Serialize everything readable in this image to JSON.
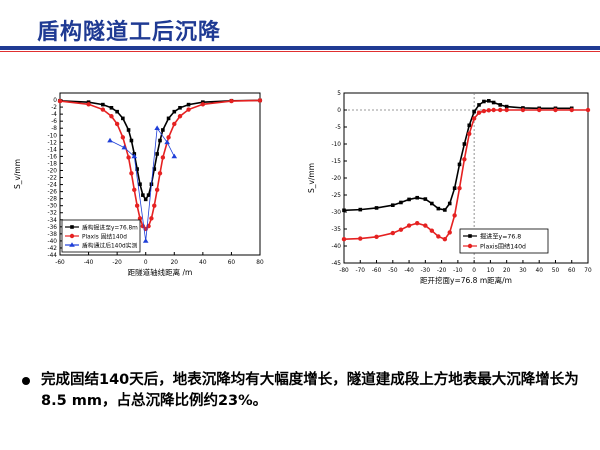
{
  "slide": {
    "title": "盾构隧道工后沉降",
    "bullet": "完成固结140天后，地表沉降均有大幅度增长，隧道建成段上方地表最大沉降增长为8.5 mm，占总沉降比例约23%。"
  },
  "chart_data": [
    {
      "type": "line",
      "xlabel": "距隧道轴线距离 /m",
      "ylabel": "S_v/mm",
      "xlim": [
        -60,
        80
      ],
      "ylim": [
        -44,
        2
      ],
      "xticks": [
        -60,
        -40,
        -20,
        0,
        20,
        40,
        60,
        80
      ],
      "yticks": [
        0,
        -2,
        -4,
        -6,
        -8,
        -10,
        -12,
        -14,
        -16,
        -18,
        -20,
        -22,
        -24,
        -26,
        -28,
        -30,
        -32,
        -34,
        -36,
        -38,
        -40,
        -42,
        -44
      ],
      "legend_position": "bottom-left",
      "series": [
        {
          "name": "盾构掘进至y=76.8m",
          "color": "#000000",
          "marker": "square",
          "x": [
            -60,
            -40,
            -30,
            -24,
            -20,
            -16,
            -12,
            -10,
            -8,
            -6,
            -4,
            -2,
            0,
            2,
            4,
            6,
            8,
            10,
            12,
            16,
            20,
            24,
            30,
            40,
            60,
            80
          ],
          "y": [
            -0.2,
            -0.6,
            -1.3,
            -2.2,
            -3.3,
            -5.2,
            -8.5,
            -11.5,
            -15.3,
            -19.6,
            -23.9,
            -27,
            -28.2,
            -27,
            -23.9,
            -19.6,
            -15.3,
            -11.5,
            -8.5,
            -5.2,
            -3.3,
            -2.2,
            -1.3,
            -0.6,
            -0.2,
            -0.1
          ]
        },
        {
          "name": "Plaxis 固结140d",
          "color": "#e52121",
          "marker": "circle",
          "x": [
            -60,
            -40,
            -30,
            -24,
            -20,
            -16,
            -12,
            -10,
            -8,
            -6,
            -4,
            -2,
            0,
            2,
            4,
            6,
            8,
            10,
            12,
            16,
            20,
            24,
            30,
            40,
            60,
            80
          ],
          "y": [
            -0.3,
            -1.2,
            -2.7,
            -4.6,
            -6.8,
            -10.6,
            -16.3,
            -20.8,
            -25.5,
            -30,
            -33.6,
            -35.8,
            -36.6,
            -35.8,
            -33.6,
            -30,
            -25.5,
            -20.8,
            -16.3,
            -10.6,
            -6.8,
            -4.6,
            -2.7,
            -1.2,
            -0.3,
            -0.1
          ]
        },
        {
          "name": "盾构通过后140d实测",
          "color": "#1f3fd8",
          "marker": "triangle",
          "x": [
            -25,
            -15,
            -8,
            0,
            8,
            15,
            20
          ],
          "y": [
            -11.5,
            -13.5,
            -16,
            -40,
            -8,
            -12,
            -16
          ]
        }
      ]
    },
    {
      "type": "line",
      "xlabel": "距开挖面y=76.8 m距离/m",
      "ylabel": "S_v/mm",
      "xlim": [
        -80,
        70
      ],
      "ylim": [
        -45,
        5
      ],
      "xticks": [
        -80,
        -70,
        -60,
        -50,
        -40,
        -30,
        -20,
        -10,
        0,
        10,
        20,
        30,
        40,
        50,
        60,
        70
      ],
      "yticks": [
        5,
        0,
        -5,
        -10,
        -15,
        -20,
        -25,
        -30,
        -35,
        -40,
        -45
      ],
      "legend_position": "bottom-right",
      "series": [
        {
          "name": "掘进至y=76.8",
          "color": "#000000",
          "marker": "square",
          "x": [
            -80,
            -70,
            -60,
            -50,
            -45,
            -40,
            -35,
            -30,
            -26,
            -22,
            -18,
            -15,
            -12,
            -9,
            -6,
            -3,
            0,
            3,
            6,
            9,
            12,
            16,
            20,
            30,
            40,
            50,
            60
          ],
          "y": [
            -29.5,
            -29.3,
            -28.8,
            -28,
            -27.2,
            -26.3,
            -25.8,
            -26.2,
            -27.5,
            -29,
            -29.4,
            -27.5,
            -23,
            -16,
            -10,
            -4.5,
            -0.5,
            1.5,
            2.5,
            2.7,
            2.2,
            1.5,
            1,
            0.6,
            0.5,
            0.5,
            0.5
          ]
        },
        {
          "name": "Plaxis固结140d",
          "color": "#e52121",
          "marker": "circle",
          "x": [
            -80,
            -70,
            -60,
            -50,
            -45,
            -40,
            -35,
            -30,
            -26,
            -22,
            -18,
            -15,
            -12,
            -9,
            -6,
            -3,
            0,
            3,
            6,
            9,
            12,
            16,
            20,
            30,
            40,
            50,
            60,
            70
          ],
          "y": [
            -38,
            -37.8,
            -37.3,
            -36.2,
            -35.2,
            -34,
            -33.3,
            -34,
            -35.5,
            -37.2,
            -38,
            -36,
            -31,
            -23,
            -14.5,
            -7,
            -2.5,
            -0.8,
            -0.3,
            -0.1,
            0,
            0,
            0,
            0,
            0,
            0,
            0,
            0
          ]
        }
      ]
    }
  ]
}
